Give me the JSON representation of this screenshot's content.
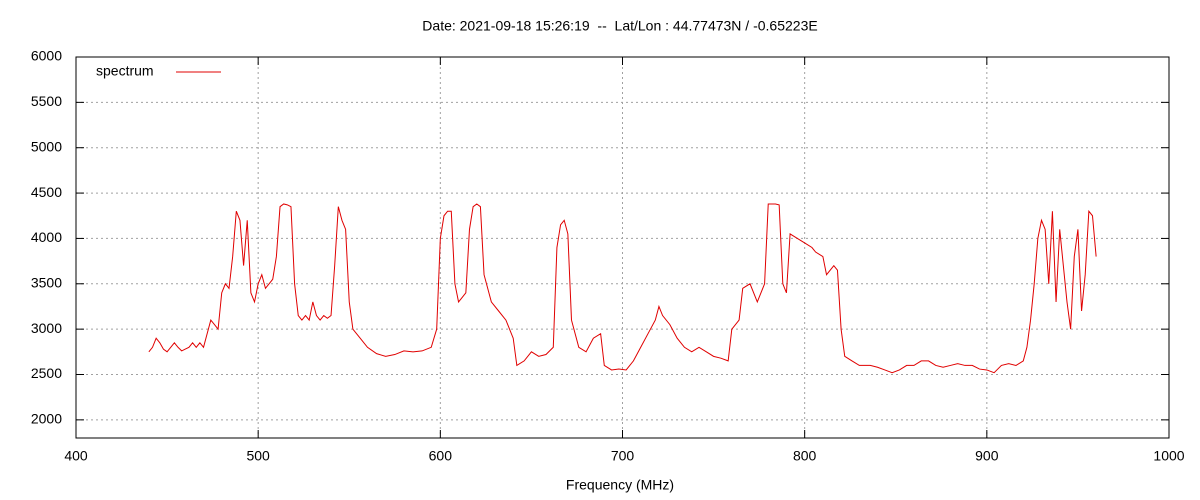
{
  "chart_data": {
    "type": "line",
    "title": "Date: 2021-09-18 15:26:19  --  Lat/Lon : 44.77473N / -0.65223E",
    "x_label": "Frequency (MHz)",
    "x": [
      440,
      442,
      444,
      446,
      448,
      450,
      452,
      454,
      456,
      458,
      460,
      462,
      464,
      466,
      468,
      470,
      472,
      474,
      476,
      478,
      480,
      482,
      484,
      486,
      488,
      490,
      492,
      494,
      496,
      498,
      500,
      502,
      504,
      506,
      508,
      510,
      512,
      514,
      516,
      518,
      520,
      522,
      524,
      526,
      528,
      530,
      532,
      534,
      536,
      538,
      540,
      542,
      544,
      546,
      548,
      550,
      552,
      556,
      560,
      565,
      570,
      575,
      580,
      585,
      590,
      595,
      598,
      600,
      602,
      604,
      606,
      608,
      610,
      612,
      614,
      616,
      618,
      620,
      622,
      624,
      628,
      632,
      636,
      638,
      640,
      642,
      646,
      650,
      654,
      658,
      662,
      664,
      666,
      668,
      670,
      672,
      676,
      680,
      684,
      688,
      690,
      694,
      698,
      702,
      706,
      710,
      714,
      718,
      720,
      722,
      726,
      730,
      734,
      738,
      742,
      746,
      750,
      754,
      758,
      760,
      764,
      766,
      770,
      774,
      778,
      780,
      784,
      786,
      788,
      790,
      792,
      796,
      800,
      804,
      806,
      810,
      812,
      816,
      818,
      820,
      822,
      826,
      830,
      836,
      840,
      844,
      848,
      852,
      856,
      860,
      864,
      868,
      872,
      876,
      880,
      884,
      888,
      892,
      896,
      900,
      904,
      908,
      912,
      916,
      920,
      922,
      924,
      926,
      928,
      930,
      932,
      934,
      936,
      938,
      940,
      942,
      944,
      946,
      948,
      950,
      952,
      954,
      956,
      958,
      960
    ],
    "series": [
      {
        "name": "spectrum",
        "color": "#e00000",
        "values": [
          2750,
          2800,
          2900,
          2850,
          2780,
          2750,
          2800,
          2850,
          2800,
          2760,
          2780,
          2800,
          2850,
          2800,
          2850,
          2800,
          2950,
          3100,
          3050,
          3000,
          3400,
          3500,
          3450,
          3800,
          4300,
          4200,
          3700,
          4200,
          3400,
          3300,
          3500,
          3600,
          3450,
          3500,
          3550,
          3800,
          4350,
          4380,
          4370,
          4350,
          3500,
          3150,
          3100,
          3150,
          3100,
          3300,
          3150,
          3100,
          3150,
          3120,
          3150,
          3700,
          4350,
          4200,
          4100,
          3300,
          3000,
          2900,
          2800,
          2730,
          2700,
          2720,
          2760,
          2750,
          2760,
          2800,
          3000,
          4000,
          4250,
          4300,
          4300,
          3500,
          3300,
          3350,
          3400,
          4100,
          4350,
          4380,
          4350,
          3600,
          3300,
          3200,
          3100,
          3000,
          2900,
          2600,
          2650,
          2750,
          2700,
          2720,
          2800,
          3900,
          4150,
          4200,
          4050,
          3100,
          2800,
          2750,
          2900,
          2950,
          2600,
          2550,
          2560,
          2550,
          2650,
          2800,
          2950,
          3100,
          3250,
          3150,
          3050,
          2900,
          2800,
          2750,
          2800,
          2750,
          2700,
          2680,
          2650,
          3000,
          3100,
          3450,
          3500,
          3300,
          3500,
          4380,
          4380,
          4370,
          3500,
          3400,
          4050,
          4000,
          3950,
          3900,
          3850,
          3800,
          3600,
          3700,
          3650,
          3000,
          2700,
          2650,
          2600,
          2600,
          2580,
          2550,
          2520,
          2550,
          2600,
          2600,
          2650,
          2650,
          2600,
          2580,
          2600,
          2620,
          2600,
          2600,
          2560,
          2550,
          2520,
          2600,
          2620,
          2600,
          2650,
          2800,
          3100,
          3500,
          4000,
          4200,
          4100,
          3500,
          4300,
          3300,
          4100,
          3700,
          3300,
          3000,
          3800,
          4100,
          3200,
          3600,
          4300,
          4250,
          3800
        ]
      }
    ],
    "xlim": [
      400,
      1000
    ],
    "xticks": [
      400,
      500,
      600,
      700,
      800,
      900,
      1000
    ],
    "ylim": [
      1800,
      6000
    ],
    "yticks": [
      2000,
      2500,
      3000,
      3500,
      4000,
      4500,
      5000,
      5500,
      6000
    ],
    "grid": true,
    "legend": "top-left"
  }
}
